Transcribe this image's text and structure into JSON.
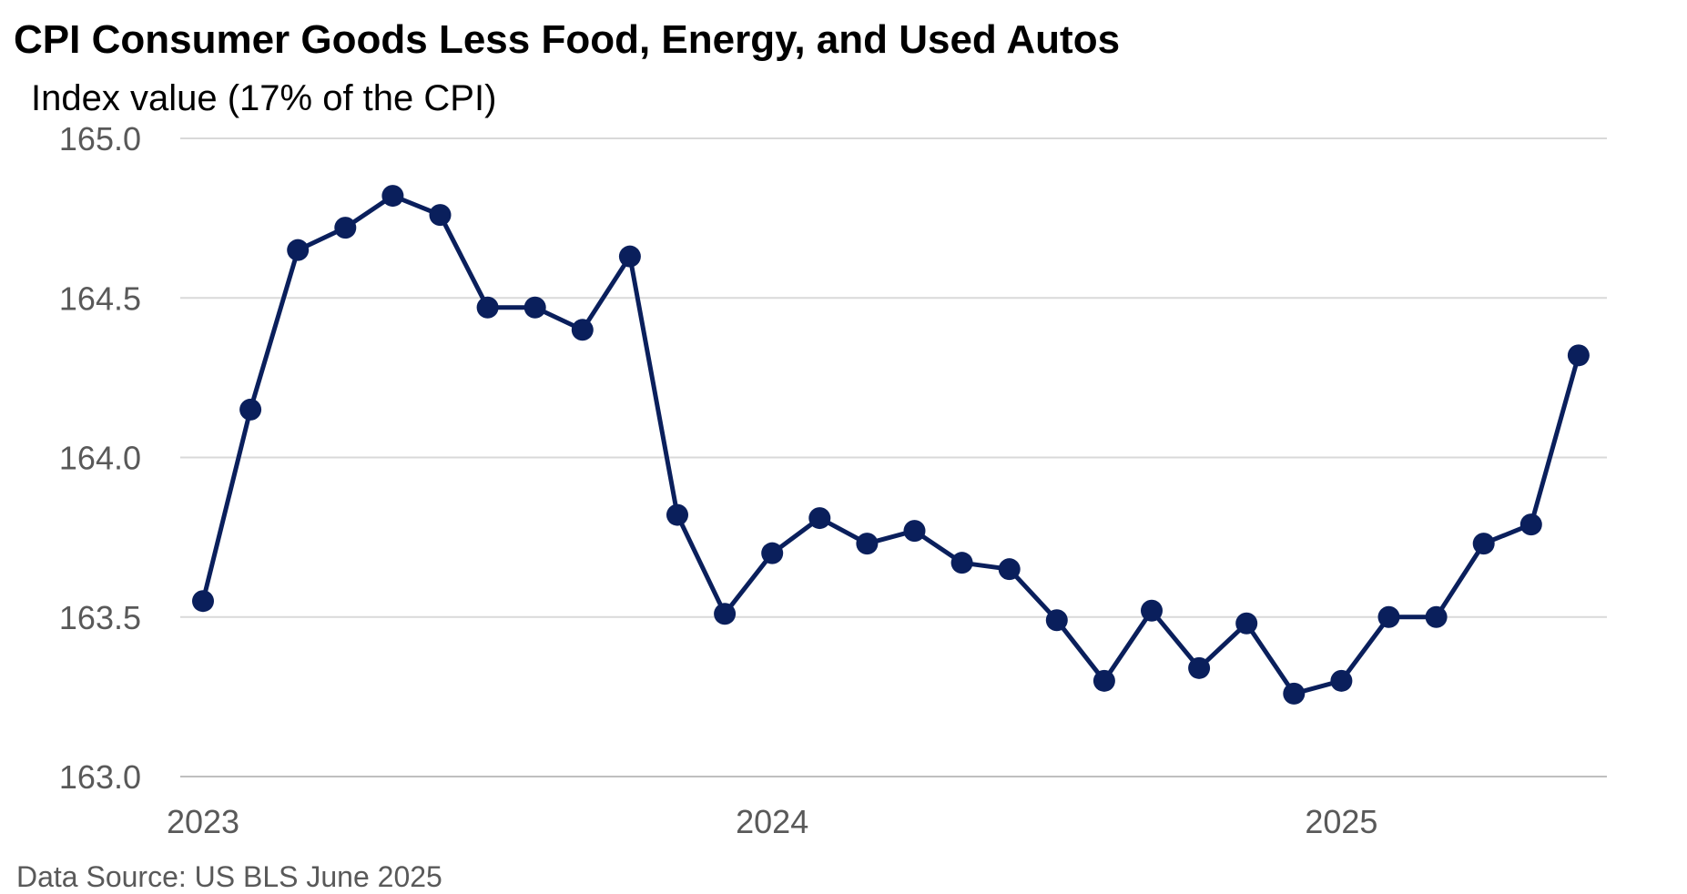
{
  "chart_data": {
    "type": "line",
    "title": "CPI Consumer Goods Less Food, Energy, and Used Autos",
    "ylabel": "Index value (17% of the CPI)",
    "xlabel": "",
    "source": "Data Source: US BLS June 2025",
    "ylim": [
      163.0,
      165.0
    ],
    "yticks": [
      163.0,
      163.5,
      164.0,
      164.5,
      165.0
    ],
    "ytick_labels": [
      "163.0",
      "163.5",
      "164.0",
      "164.5",
      "165.0"
    ],
    "xticks": [
      {
        "label": "2023",
        "index": 0
      },
      {
        "label": "2024",
        "index": 12
      },
      {
        "label": "2025",
        "index": 24
      }
    ],
    "grid": true,
    "line_color": "#0a1f5c",
    "series": [
      {
        "name": "CPI Consumer Goods Less Food, Energy, and Used Autos",
        "values": [
          163.55,
          164.15,
          164.65,
          164.72,
          164.82,
          164.76,
          164.47,
          164.47,
          164.4,
          164.63,
          163.82,
          163.51,
          163.7,
          163.81,
          163.73,
          163.77,
          163.67,
          163.65,
          163.49,
          163.3,
          163.52,
          163.34,
          163.48,
          163.26,
          163.3,
          163.5,
          163.5,
          163.73,
          163.79,
          164.32
        ]
      }
    ]
  }
}
